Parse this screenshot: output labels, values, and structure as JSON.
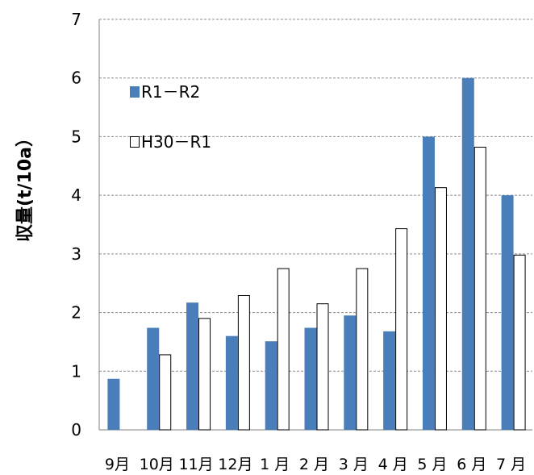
{
  "chart_data": {
    "type": "bar",
    "ylabel": "収量(t/10a）",
    "xlabel": "",
    "title": "",
    "categories": [
      "9月",
      "10月",
      "11月",
      "12月",
      "1 月",
      "2 月",
      "3 月",
      "4 月",
      "5 月",
      "6 月",
      "7 月"
    ],
    "ylim": [
      0,
      7
    ],
    "yticks": [
      0,
      1,
      2,
      3,
      4,
      5,
      6,
      7
    ],
    "grid": "horizontal-dashed",
    "legend_position": "top-left",
    "series": [
      {
        "name": "R1－R2",
        "color": "#4a7ebb",
        "fill": "solid",
        "values": [
          0.87,
          1.74,
          2.17,
          1.6,
          1.51,
          1.74,
          1.95,
          1.68,
          5.0,
          6.0,
          4.0
        ]
      },
      {
        "name": "H30－R1",
        "color": "#ffffff",
        "fill": "outline",
        "values": [
          null,
          1.28,
          1.9,
          2.29,
          2.75,
          2.15,
          2.75,
          3.43,
          4.13,
          4.82,
          2.98
        ]
      }
    ]
  }
}
